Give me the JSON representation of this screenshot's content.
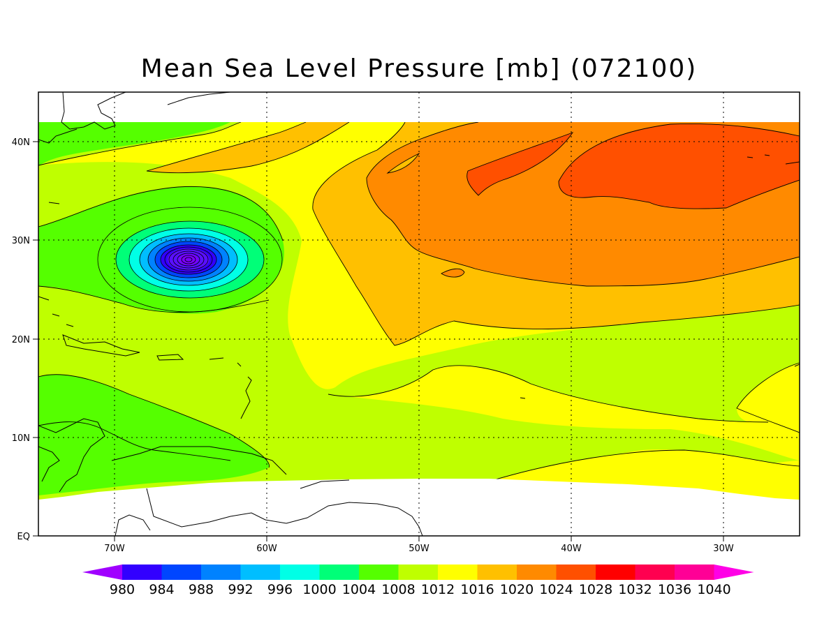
{
  "title": "Mean Sea Level Pressure [mb] (072100)",
  "map": {
    "lon_range": [
      -75,
      -25
    ],
    "lat_range": [
      0,
      45
    ],
    "grid": true,
    "x_tick_labels": [
      "70W",
      "60W",
      "50W",
      "40W",
      "30W"
    ],
    "y_tick_labels": [
      "EQ",
      "10N",
      "20N",
      "30N",
      "40N"
    ],
    "low_center": {
      "lon": -65,
      "lat": 28,
      "pressure_mb": 980
    },
    "colors": {
      "land_outline": "#000000",
      "missing": "#ffffff"
    }
  },
  "colorbar": {
    "levels": [
      "980",
      "984",
      "988",
      "992",
      "996",
      "1000",
      "1004",
      "1008",
      "1012",
      "1016",
      "1020",
      "1024",
      "1028",
      "1032",
      "1036",
      "1040"
    ],
    "colors": [
      "#a000ff",
      "#3200ff",
      "#0046ff",
      "#0082ff",
      "#00beff",
      "#00ffe6",
      "#00ff78",
      "#55ff00",
      "#bfff00",
      "#ffff00",
      "#ffc000",
      "#ff8a00",
      "#ff5000",
      "#ff0000",
      "#ff0050",
      "#ff0096",
      "#ff00e6"
    ]
  }
}
